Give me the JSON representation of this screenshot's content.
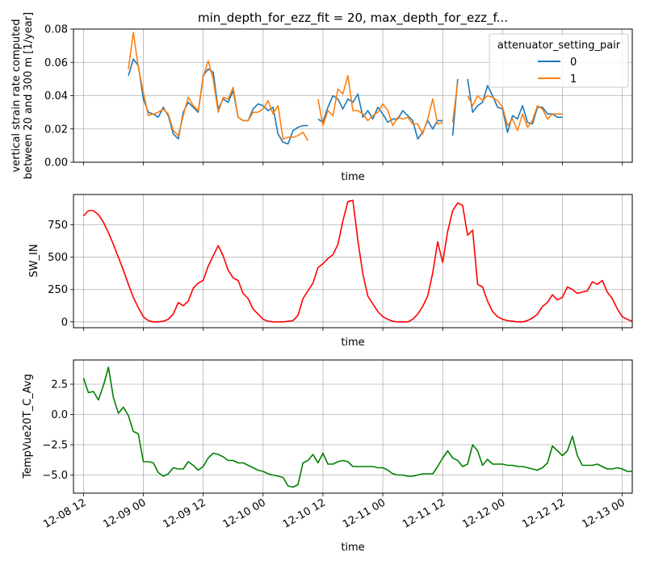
{
  "chart_data": [
    {
      "type": "line",
      "title": "min_depth_for_ezz_fit = 20, max_depth_for_ezz_f...",
      "xlabel": "time",
      "ylabel": "vertical strain rate computed\nbetween 20 and 300 m [1/year]",
      "xlim": [
        "2012-12-08T10:00",
        "2012-12-13T02:00"
      ],
      "ylim": [
        0,
        0.08
      ],
      "yticks": [
        0.0,
        0.02,
        0.04,
        0.06,
        0.08
      ],
      "ytick_labels": [
        "0.00",
        "0.02",
        "0.04",
        "0.06",
        "0.08"
      ],
      "show_xticklabels": false,
      "grid": true,
      "legend": {
        "title": "attenuator_setting_pair",
        "position": "upper right"
      },
      "series": [
        {
          "name": "0",
          "color": "#1f77b4",
          "segments": [
            {
              "x": [
                "2012-12-08T21:00",
                "2012-12-08T22:00",
                "2012-12-08T23:00",
                "2012-12-09T00:00",
                "2012-12-09T01:00",
                "2012-12-09T02:00",
                "2012-12-09T03:00",
                "2012-12-09T04:00",
                "2012-12-09T05:00",
                "2012-12-09T06:00",
                "2012-12-09T07:00",
                "2012-12-09T08:00",
                "2012-12-09T09:00",
                "2012-12-09T10:00",
                "2012-12-09T11:00",
                "2012-12-09T12:00",
                "2012-12-09T13:00",
                "2012-12-09T14:00",
                "2012-12-09T15:00",
                "2012-12-09T16:00",
                "2012-12-09T17:00",
                "2012-12-09T18:00",
                "2012-12-09T19:00",
                "2012-12-09T20:00",
                "2012-12-09T21:00",
                "2012-12-09T22:00",
                "2012-12-09T23:00",
                "2012-12-10T00:00",
                "2012-12-10T01:00",
                "2012-12-10T02:00",
                "2012-12-10T03:00",
                "2012-12-10T04:00",
                "2012-12-10T05:00",
                "2012-12-10T06:00",
                "2012-12-10T07:00",
                "2012-12-10T08:00",
                "2012-12-10T09:00"
              ],
              "y": [
                0.052,
                0.062,
                0.058,
                0.038,
                0.03,
                0.029,
                0.027,
                0.033,
                0.028,
                0.017,
                0.014,
                0.03,
                0.036,
                0.033,
                0.03,
                0.052,
                0.056,
                0.054,
                0.032,
                0.038,
                0.036,
                0.043,
                0.027,
                0.025,
                0.025,
                0.032,
                0.035,
                0.034,
                0.031,
                0.033,
                0.017,
                0.012,
                0.011,
                0.019,
                0.021,
                0.022,
                0.022
              ]
            },
            {
              "x": [
                "2012-12-10T11:00",
                "2012-12-10T12:00",
                "2012-12-10T13:00",
                "2012-12-10T14:00",
                "2012-12-10T15:00",
                "2012-12-10T16:00",
                "2012-12-10T17:00",
                "2012-12-10T18:00",
                "2012-12-10T19:00",
                "2012-12-10T20:00",
                "2012-12-10T21:00",
                "2012-12-10T22:00",
                "2012-12-10T23:00",
                "2012-12-11T00:00",
                "2012-12-11T01:00",
                "2012-12-11T02:00",
                "2012-12-11T03:00",
                "2012-12-11T04:00",
                "2012-12-11T05:00",
                "2012-12-11T06:00",
                "2012-12-11T07:00",
                "2012-12-11T08:00",
                "2012-12-11T09:00",
                "2012-12-11T10:00",
                "2012-12-11T11:00",
                "2012-12-11T12:00"
              ],
              "y": [
                0.026,
                0.024,
                0.033,
                0.04,
                0.038,
                0.032,
                0.038,
                0.036,
                0.041,
                0.027,
                0.031,
                0.026,
                0.033,
                0.029,
                0.024,
                0.026,
                0.026,
                0.031,
                0.028,
                0.025,
                0.014,
                0.018,
                0.025,
                0.02,
                0.025,
                0.025
              ]
            },
            {
              "x": [
                "2012-12-11T14:00",
                "2012-12-11T15:00"
              ],
              "y": [
                0.016,
                0.05
              ]
            },
            {
              "x": [
                "2012-12-11T17:00",
                "2012-12-11T18:00",
                "2012-12-11T19:00",
                "2012-12-11T20:00",
                "2012-12-11T21:00",
                "2012-12-11T22:00",
                "2012-12-11T23:00",
                "2012-12-12T00:00",
                "2012-12-12T01:00",
                "2012-12-12T02:00",
                "2012-12-12T03:00",
                "2012-12-12T04:00",
                "2012-12-12T05:00",
                "2012-12-12T06:00",
                "2012-12-12T07:00",
                "2012-12-12T08:00",
                "2012-12-12T09:00",
                "2012-12-12T10:00",
                "2012-12-12T11:00",
                "2012-12-12T12:00"
              ],
              "y": [
                0.05,
                0.03,
                0.034,
                0.036,
                0.046,
                0.04,
                0.033,
                0.032,
                0.018,
                0.028,
                0.026,
                0.034,
                0.024,
                0.023,
                0.033,
                0.033,
                0.029,
                0.029,
                0.027,
                0.027
              ]
            }
          ]
        },
        {
          "name": "1",
          "color": "#ff7f0e",
          "segments": [
            {
              "x": [
                "2012-12-08T21:00",
                "2012-12-08T22:00",
                "2012-12-08T23:00",
                "2012-12-09T00:00",
                "2012-12-09T01:00",
                "2012-12-09T02:00",
                "2012-12-09T03:00",
                "2012-12-09T04:00",
                "2012-12-09T05:00",
                "2012-12-09T06:00",
                "2012-12-09T07:00",
                "2012-12-09T08:00",
                "2012-12-09T09:00",
                "2012-12-09T10:00",
                "2012-12-09T11:00",
                "2012-12-09T12:00",
                "2012-12-09T13:00",
                "2012-12-09T14:00",
                "2012-12-09T15:00",
                "2012-12-09T16:00",
                "2012-12-09T17:00",
                "2012-12-09T18:00",
                "2012-12-09T19:00",
                "2012-12-09T20:00",
                "2012-12-09T21:00",
                "2012-12-09T22:00",
                "2012-12-09T23:00",
                "2012-12-10T00:00",
                "2012-12-10T01:00",
                "2012-12-10T02:00",
                "2012-12-10T03:00",
                "2012-12-10T04:00",
                "2012-12-10T05:00",
                "2012-12-10T06:00",
                "2012-12-10T07:00",
                "2012-12-10T08:00",
                "2012-12-10T09:00"
              ],
              "y": [
                0.056,
                0.078,
                0.057,
                0.042,
                0.028,
                0.029,
                0.03,
                0.032,
                0.029,
                0.019,
                0.016,
                0.028,
                0.039,
                0.034,
                0.031,
                0.051,
                0.061,
                0.05,
                0.03,
                0.039,
                0.038,
                0.045,
                0.027,
                0.025,
                0.025,
                0.03,
                0.03,
                0.032,
                0.037,
                0.029,
                0.034,
                0.014,
                0.015,
                0.015,
                0.016,
                0.018,
                0.013
              ]
            },
            {
              "x": [
                "2012-12-10T11:00",
                "2012-12-10T12:00",
                "2012-12-10T13:00",
                "2012-12-10T14:00",
                "2012-12-10T15:00",
                "2012-12-10T16:00",
                "2012-12-10T17:00",
                "2012-12-10T18:00",
                "2012-12-10T19:00",
                "2012-12-10T20:00",
                "2012-12-10T21:00",
                "2012-12-10T22:00",
                "2012-12-10T23:00",
                "2012-12-11T00:00",
                "2012-12-11T01:00",
                "2012-12-11T02:00",
                "2012-12-11T03:00",
                "2012-12-11T04:00",
                "2012-12-11T05:00",
                "2012-12-11T06:00",
                "2012-12-11T07:00",
                "2012-12-11T08:00",
                "2012-12-11T09:00",
                "2012-12-11T10:00",
                "2012-12-11T11:00",
                "2012-12-11T12:00"
              ],
              "y": [
                0.038,
                0.022,
                0.031,
                0.028,
                0.044,
                0.041,
                0.052,
                0.031,
                0.031,
                0.029,
                0.025,
                0.028,
                0.03,
                0.035,
                0.031,
                0.022,
                0.027,
                0.026,
                0.027,
                0.023,
                0.023,
                0.017,
                0.026,
                0.038,
                0.023,
                0.024
              ]
            },
            {
              "x": [
                "2012-12-11T14:00",
                "2012-12-11T15:00"
              ],
              "y": [
                0.024,
                0.048
              ]
            },
            {
              "x": [
                "2012-12-11T17:00",
                "2012-12-11T18:00",
                "2012-12-11T19:00",
                "2012-12-11T20:00",
                "2012-12-11T21:00",
                "2012-12-11T22:00",
                "2012-12-11T23:00",
                "2012-12-12T00:00",
                "2012-12-12T01:00",
                "2012-12-12T02:00",
                "2012-12-12T03:00",
                "2012-12-12T04:00",
                "2012-12-12T05:00",
                "2012-12-12T06:00",
                "2012-12-12T07:00",
                "2012-12-12T08:00",
                "2012-12-12T09:00",
                "2012-12-12T10:00",
                "2012-12-12T11:00",
                "2012-12-12T12:00"
              ],
              "y": [
                0.04,
                0.034,
                0.04,
                0.037,
                0.04,
                0.039,
                0.037,
                0.033,
                0.022,
                0.026,
                0.019,
                0.029,
                0.021,
                0.025,
                0.034,
                0.032,
                0.026,
                0.029,
                0.029,
                0.029
              ]
            }
          ]
        }
      ]
    },
    {
      "type": "line",
      "title": "",
      "xlabel": "time",
      "ylabel": "SW_IN",
      "xlim": [
        "2012-12-08T10:00",
        "2012-12-13T02:00"
      ],
      "ylim": [
        -45,
        985
      ],
      "yticks": [
        0,
        250,
        500,
        750
      ],
      "ytick_labels": [
        "0",
        "250",
        "500",
        "750"
      ],
      "show_xticklabels": false,
      "grid": true,
      "series": [
        {
          "name": "",
          "color": "#ff0000",
          "x_start": "2012-12-08T12:00",
          "x_step_hours": 1,
          "values": [
            820,
            860,
            860,
            830,
            770,
            690,
            600,
            500,
            400,
            290,
            190,
            110,
            40,
            10,
            0,
            0,
            5,
            20,
            60,
            150,
            125,
            160,
            260,
            300,
            320,
            430,
            510,
            590,
            510,
            400,
            340,
            320,
            220,
            180,
            100,
            60,
            20,
            5,
            0,
            0,
            0,
            5,
            10,
            50,
            180,
            240,
            300,
            420,
            450,
            490,
            520,
            600,
            780,
            930,
            940,
            630,
            370,
            200,
            140,
            80,
            40,
            20,
            5,
            0,
            0,
            0,
            20,
            60,
            120,
            200,
            380,
            620,
            460,
            700,
            860,
            920,
            900,
            670,
            710,
            290,
            270,
            160,
            80,
            40,
            20,
            10,
            5,
            0,
            0,
            10,
            30,
            60,
            120,
            150,
            210,
            170,
            190,
            270,
            250,
            220,
            230,
            240,
            310,
            290,
            320,
            230,
            180,
            100,
            40,
            20,
            5
          ]
        }
      ]
    },
    {
      "type": "line",
      "title": "",
      "xlabel": "time",
      "ylabel": "TempVue20T_C_Avg",
      "xlim": [
        "2012-12-08T10:00",
        "2012-12-13T02:00"
      ],
      "ylim": [
        -6.5,
        4.5
      ],
      "yticks": [
        2.5,
        0.0,
        -2.5,
        -5.0
      ],
      "ytick_labels": [
        "2.5",
        "0.0",
        "−2.5",
        "−5.0"
      ],
      "xticks": [
        "2012-12-08T12:00",
        "2012-12-09T00:00",
        "2012-12-09T12:00",
        "2012-12-10T00:00",
        "2012-12-10T12:00",
        "2012-12-11T00:00",
        "2012-12-11T12:00",
        "2012-12-12T00:00",
        "2012-12-12T12:00",
        "2012-12-13T00:00"
      ],
      "xtick_labels": [
        "12-08 12",
        "12-09 00",
        "12-09 12",
        "12-10 00",
        "12-10 12",
        "12-11 00",
        "12-11 12",
        "12-12 00",
        "12-12 12",
        "12-13 00"
      ],
      "show_xticklabels": true,
      "grid": true,
      "series": [
        {
          "name": "",
          "color": "#008000",
          "x_start": "2012-12-08T12:00",
          "x_step_hours": 1,
          "values": [
            3.0,
            1.8,
            1.9,
            1.2,
            2.4,
            3.9,
            1.4,
            0.1,
            0.6,
            -0.1,
            -1.4,
            -1.6,
            -3.9,
            -3.9,
            -4.0,
            -4.8,
            -5.1,
            -4.9,
            -4.4,
            -4.5,
            -4.5,
            -3.9,
            -4.2,
            -4.6,
            -4.3,
            -3.6,
            -3.2,
            -3.3,
            -3.5,
            -3.8,
            -3.8,
            -4.0,
            -4.0,
            -4.2,
            -4.4,
            -4.6,
            -4.7,
            -4.9,
            -5.0,
            -5.1,
            -5.2,
            -5.9,
            -6.0,
            -5.8,
            -4.0,
            -3.8,
            -3.3,
            -4.0,
            -3.2,
            -4.1,
            -4.1,
            -3.9,
            -3.8,
            -3.9,
            -4.3,
            -4.3,
            -4.3,
            -4.3,
            -4.3,
            -4.4,
            -4.4,
            -4.6,
            -4.9,
            -5.0,
            -5.0,
            -5.1,
            -5.1,
            -5.0,
            -4.9,
            -4.9,
            -4.9,
            -4.3,
            -3.6,
            -3.0,
            -3.6,
            -3.8,
            -4.3,
            -4.1,
            -2.5,
            -3.0,
            -4.2,
            -3.7,
            -4.1,
            -4.1,
            -4.1,
            -4.2,
            -4.2,
            -4.3,
            -4.3,
            -4.4,
            -4.5,
            -4.6,
            -4.4,
            -4.0,
            -2.6,
            -3.0,
            -3.4,
            -3.0,
            -1.8,
            -3.4,
            -4.2,
            -4.2,
            -4.2,
            -4.1,
            -4.3,
            -4.5,
            -4.5,
            -4.4,
            -4.5,
            -4.7,
            -4.7
          ]
        }
      ]
    }
  ]
}
